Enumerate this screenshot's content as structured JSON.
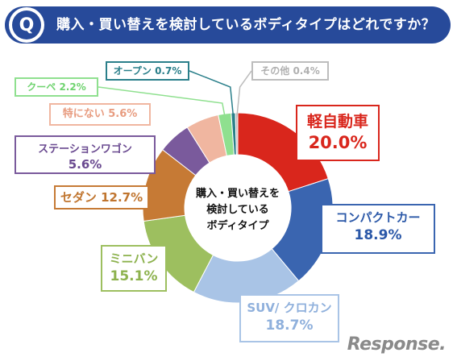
{
  "header": {
    "q_badge": "Q",
    "question": "購入・買い替えを検討しているボディタイプはどれですか？"
  },
  "center_label": [
    "購入・買い替えを",
    "検討している",
    "ボディタイプ"
  ],
  "chart_data": {
    "type": "pie",
    "donut": true,
    "unit": "%",
    "slices": [
      {
        "name": "軽自動車",
        "value": 20.0,
        "value_label": "20.0%",
        "color": "#d9261c",
        "text_color": "#d9261c"
      },
      {
        "name": "コンパクトカー",
        "value": 18.9,
        "value_label": "18.9%",
        "color": "#3a65b0",
        "text_color": "#2b58a8"
      },
      {
        "name": "SUV/ クロカン",
        "value": 18.7,
        "value_label": "18.7%",
        "color": "#a9c4e6",
        "text_color": "#8fb0dc"
      },
      {
        "name": "ミニバン",
        "value": 15.1,
        "value_label": "15.1%",
        "color": "#9dbf5f",
        "text_color": "#8db24e"
      },
      {
        "name": "セダン",
        "value": 12.7,
        "value_label": "12.7%",
        "color": "#c67a35",
        "text_color": "#c0752f"
      },
      {
        "name": "ステーションワゴン",
        "value": 5.6,
        "value_label": "5.6%",
        "color": "#7a5a9c",
        "text_color": "#6a4a90"
      },
      {
        "name": "特にない",
        "value": 5.6,
        "value_label": "5.6%",
        "color": "#f0b6a0",
        "text_color": "#e89c80"
      },
      {
        "name": "クーペ",
        "value": 2.2,
        "value_label": "2.2%",
        "color": "#8fe08f",
        "text_color": "#6fd36f"
      },
      {
        "name": "オープン",
        "value": 0.7,
        "value_label": "0.7%",
        "color": "#2a7f8a",
        "text_color": "#2a7f8a"
      },
      {
        "name": "その他",
        "value": 0.4,
        "value_label": "0.4%",
        "color": "#bdbdbd",
        "text_color": "#b0b0b0"
      }
    ]
  },
  "logo": "Response."
}
